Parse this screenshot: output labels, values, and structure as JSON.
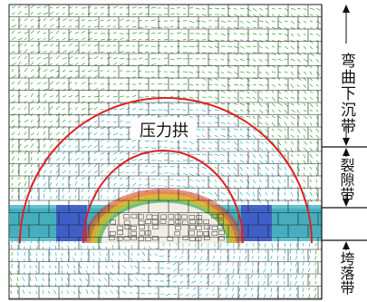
{
  "diagram": {
    "arch_label": "压力拱",
    "zones": [
      {
        "label": "弯曲下沉带"
      },
      {
        "label": "裂隙带"
      },
      {
        "label": "垮落带"
      }
    ]
  },
  "colors": {
    "background": "#ffffff",
    "mesh_lines": "#1a1a1a",
    "vectors_green": "#2eaa2e",
    "vectors_cyan": "#20b4c8",
    "vectors_blue": "#3c46c8",
    "arch_curve": "#e02020",
    "seam_band": "#3aa8b8"
  },
  "icons": [
    "up-arrow-icon",
    "down-arrow-icon"
  ]
}
